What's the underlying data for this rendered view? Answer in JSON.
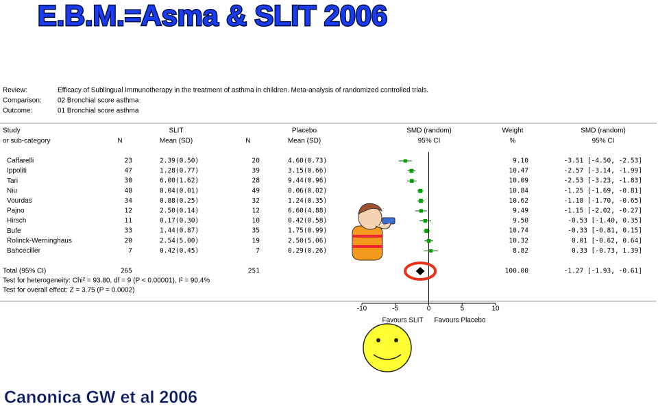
{
  "chart_data": {
    "type": "forest",
    "title": "E.B.M.=Asma & SLIT 2006",
    "info": [
      {
        "label": "Review:",
        "text": "Efficacy of Sublingual Immunotherapy in the treatment of asthma in children. Meta-analysis of randomized controlled trials."
      },
      {
        "label": "Comparison:",
        "text": "02 Bronchial score asthma"
      },
      {
        "label": "Outcome:",
        "text": "01 Bronchial score asthma"
      }
    ],
    "columns": [
      {
        "line1": "Study",
        "line2": "or sub-category"
      },
      {
        "line2": "N"
      },
      {
        "line1": "SLIT",
        "line2": "Mean (SD)"
      },
      {
        "line2": "N"
      },
      {
        "line1": "Placebo",
        "line2": "Mean (SD)"
      },
      {
        "line1": "SMD (random)",
        "line2": "95% CI"
      },
      {
        "line1": "Weight",
        "line2": "%"
      },
      {
        "line1": "SMD (random)",
        "line2": "95% CI"
      }
    ],
    "categories": [
      "Caffarelli",
      "Ippoliti",
      "Tari",
      "Niu",
      "Vourdas",
      "Pajno",
      "Hirsch",
      "Bufe",
      "Rolinck-Werninghaus",
      "Bahceciller"
    ],
    "n_slit": [
      23,
      47,
      30,
      48,
      34,
      12,
      11,
      33,
      20,
      7
    ],
    "slit_mean_sd": [
      "2.39(0.50)",
      "1.28(0.77)",
      "6.00(1.62)",
      "0.04(0.01)",
      "0.88(0.25)",
      "2.50(0.14)",
      "0.17(0.30)",
      "1.44(0.87)",
      "2.54(5.00)",
      "0.42(0.45)"
    ],
    "n_placebo": [
      20,
      39,
      28,
      49,
      32,
      12,
      10,
      35,
      19,
      7
    ],
    "placebo_mean_sd": [
      "4.60(0.73)",
      "3.15(0.66)",
      "9.44(0.96)",
      "0.06(0.02)",
      "1.24(0.35)",
      "6.60(4.88)",
      "0.42(0.58)",
      "1.75(0.99)",
      "2.50(5.06)",
      "0.29(0.26)"
    ],
    "weights": [
      9.1,
      10.47,
      10.09,
      10.84,
      10.62,
      9.49,
      9.5,
      10.74,
      10.32,
      8.82
    ],
    "weight_labels": [
      "9.10",
      "10.47",
      "10.09",
      "10.84",
      "10.62",
      "9.49",
      "9.50",
      "10.74",
      "10.32",
      "8.82"
    ],
    "values": [
      -3.51,
      -2.57,
      -2.53,
      -1.25,
      -1.18,
      -1.15,
      -0.53,
      -0.33,
      0.01,
      0.33
    ],
    "ci_low": [
      -4.5,
      -3.14,
      -3.23,
      -1.69,
      -1.7,
      -2.02,
      -1.4,
      -0.81,
      -0.62,
      -0.73
    ],
    "ci_high": [
      -2.53,
      -1.99,
      -1.83,
      -0.81,
      -0.65,
      -0.27,
      0.35,
      0.15,
      0.64,
      1.39
    ],
    "value_labels": [
      "-3.51 [-4.50, -2.53]",
      "-2.57 [-3.14, -1.99]",
      "-2.53 [-3.23, -1.83]",
      "-1.25 [-1.69, -0.81]",
      "-1.18 [-1.70, -0.65]",
      "-1.15 [-2.02, -0.27]",
      "-0.53 [-1.40, 0.35]",
      "-0.33 [-0.81, 0.15]",
      "0.01 [-0.62, 0.64]",
      "0.33 [-0.73, 1.39]"
    ],
    "color": "#00a000",
    "total": {
      "label": "Total (95% CI)",
      "n_slit": 265,
      "n_placebo": 251,
      "weight": 100,
      "weight_label": "100.00",
      "value": -1.27,
      "ci_low": -1.93,
      "ci_high": -0.61,
      "value_label": "-1.27 [-1.93, -0.61]"
    },
    "heterogeneity": "Test for heterogeneity: Chi² = 93.80, df = 9 (P < 0.00001), I² = 90.4%",
    "overall_effect": "Test for overall effect: Z = 3.75 (P = 0.0002)",
    "xlim": [
      -10,
      10
    ],
    "xticks": [
      -10,
      -5,
      0,
      5,
      10
    ],
    "xlabel_left": "Favours SLIT",
    "xlabel_right": "Favours Placebo",
    "footer": "Canonica GW et al 2006"
  }
}
